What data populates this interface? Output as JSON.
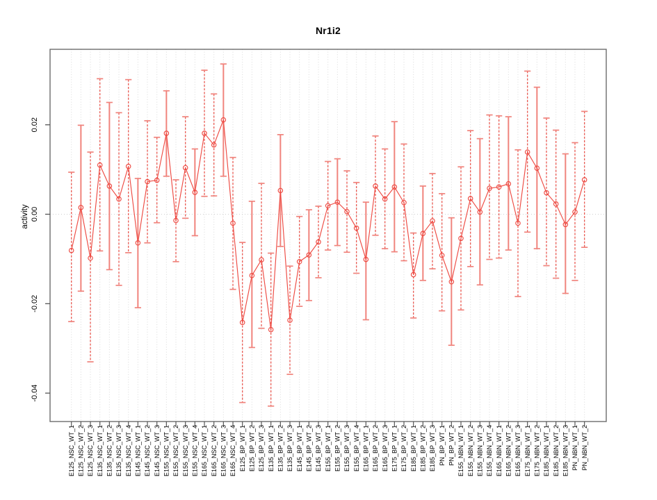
{
  "title": "Nr1i2",
  "ylabel": "activity",
  "chart_data": {
    "type": "line",
    "subtype": "point-error-bar-series",
    "title": "Nr1i2",
    "xlabel": "",
    "ylabel": "activity",
    "ylim": [
      -0.047,
      0.0375
    ],
    "y_ticks": [
      0.02,
      0.0,
      -0.02,
      -0.04
    ],
    "y_tick_labels": [
      "0.02",
      "0.00",
      "-0.02",
      "-0.04"
    ],
    "grid": {
      "vertical_dotted_per_category": true,
      "zero_line_dotted": true,
      "legend": "none"
    },
    "marker": "open-circle",
    "error_bars": true,
    "colors": {
      "series_line": "#ee4a42",
      "marker_stroke": "#ee4a42",
      "error_bar": "#f0837c",
      "error_bar_dash": "#ea5850",
      "gridline": "#d9d9d9",
      "zero_line": "#cfcfcf",
      "axis_box": "#6b6b6b",
      "tick": "#555555",
      "text": "#000000"
    },
    "categories": [
      "E125_NSC_WT_1",
      "E125_NSC_WT_2",
      "E125_NSC_WT_3",
      "E135_NSC_WT_1",
      "E135_NSC_WT_2",
      "E135_NSC_WT_3",
      "E135_NSC_WT_4",
      "E145_NSC_WT_1",
      "E145_NSC_WT_2",
      "E145_NSC_WT_3",
      "E155_NSC_WT_1",
      "E155_NSC_WT_2",
      "E155_NSC_WT_3",
      "E155_NSC_WT_4",
      "E165_NSC_WT_1",
      "E165_NSC_WT_2",
      "E165_NSC_WT_3",
      "E165_NSC_WT_4",
      "E125_BP_WT_1",
      "E125_BP_WT_2",
      "E125_BP_WT_3",
      "E135_BP_WT_1",
      "E135_BP_WT_2",
      "E135_BP_WT_3",
      "E145_BP_WT_1",
      "E145_BP_WT_2",
      "E145_BP_WT_3",
      "E155_BP_WT_1",
      "E155_BP_WT_2",
      "E155_BP_WT_3",
      "E155_BP_WT_4",
      "E165_BP_WT_1",
      "E165_BP_WT_2",
      "E165_BP_WT_3",
      "E175_BP_WT_1",
      "E175_BP_WT_2",
      "E185_BP_WT_1",
      "E185_BP_WT_2",
      "E185_BP_WT_3",
      "PN_BP_WT_1",
      "PN_BP_WT_2",
      "E155_NBN_WT_1",
      "E155_NBN_WT_2",
      "E155_NBN_WT_3",
      "E155_NBN_WT_4",
      "E165_NBN_WT_1",
      "E165_NBN_WT_2",
      "E165_NBN_WT_3",
      "E175_NBN_WT_1",
      "E175_NBN_WT_2",
      "E185_NBN_WT_1",
      "E185_NBN_WT_2",
      "E185_NBN_WT_3",
      "PN_NBN_WT_1",
      "PN_NBN_WT_2"
    ],
    "series": [
      {
        "name": "activity",
        "values": [
          -0.0081,
          0.0015,
          -0.0098,
          0.011,
          0.0063,
          0.0034,
          0.0107,
          -0.0064,
          0.0073,
          0.0076,
          0.0181,
          -0.0014,
          0.0104,
          0.0049,
          0.0181,
          0.0155,
          0.0211,
          -0.002,
          -0.0242,
          -0.0137,
          -0.0102,
          -0.0258,
          0.0053,
          -0.0237,
          -0.0106,
          -0.0091,
          -0.0062,
          0.0019,
          0.0027,
          0.0006,
          -0.0031,
          -0.0101,
          0.0063,
          0.0034,
          0.0061,
          0.0026,
          -0.0135,
          -0.0043,
          -0.0015,
          -0.0092,
          -0.0151,
          -0.0054,
          0.0035,
          0.0005,
          0.0058,
          0.0061,
          0.0068,
          -0.002,
          0.0139,
          0.0103,
          0.0048,
          0.0023,
          -0.0023,
          0.0005,
          0.0077
        ],
        "ci_low": [
          -0.024,
          -0.0172,
          -0.033,
          -0.0082,
          -0.0124,
          -0.0159,
          -0.0086,
          -0.0209,
          -0.0064,
          -0.0019,
          0.0085,
          -0.0106,
          -0.0009,
          -0.0048,
          0.004,
          0.0041,
          0.0085,
          -0.0168,
          -0.0421,
          -0.0298,
          -0.0255,
          -0.0429,
          -0.0072,
          -0.0358,
          -0.0206,
          -0.0193,
          -0.0142,
          -0.008,
          -0.007,
          -0.0085,
          -0.0132,
          -0.0236,
          -0.0047,
          -0.0077,
          -0.0084,
          -0.0104,
          -0.0232,
          -0.0148,
          -0.0122,
          -0.0216,
          -0.0293,
          -0.0214,
          -0.0117,
          -0.0158,
          -0.0101,
          -0.0098,
          -0.008,
          -0.0184,
          -0.004,
          -0.0077,
          -0.0115,
          -0.0143,
          -0.0177,
          -0.0148,
          -0.0074
        ],
        "ci_high": [
          0.0094,
          0.0199,
          0.0139,
          0.0303,
          0.025,
          0.0227,
          0.0301,
          0.008,
          0.0209,
          0.0172,
          0.0276,
          0.0077,
          0.0218,
          0.0146,
          0.0322,
          0.0269,
          0.0336,
          0.0127,
          -0.0063,
          0.0029,
          0.0069,
          -0.0087,
          0.0178,
          -0.0116,
          -0.0005,
          0.001,
          0.0018,
          0.0118,
          0.0124,
          0.0097,
          0.0071,
          0.0027,
          0.0175,
          0.0146,
          0.0207,
          0.0157,
          -0.0042,
          0.0063,
          0.0091,
          0.0046,
          -0.0008,
          0.0106,
          0.0187,
          0.0169,
          0.0222,
          0.022,
          0.0218,
          0.0144,
          0.032,
          0.0284,
          0.0215,
          0.0188,
          0.0135,
          0.016,
          0.023
        ]
      }
    ]
  }
}
